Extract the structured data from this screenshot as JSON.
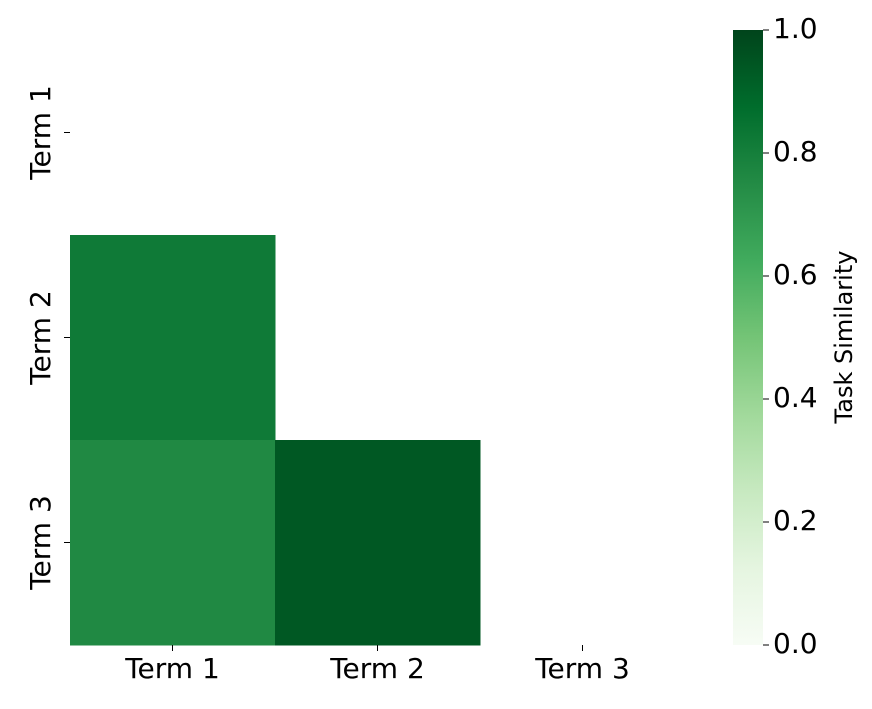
{
  "chart_data": {
    "type": "heatmap",
    "x_categories": [
      "Term 1",
      "Term 2",
      "Term 3"
    ],
    "y_categories": [
      "Term 1",
      "Term 2",
      "Term 3"
    ],
    "values": [
      [
        null,
        null,
        null
      ],
      [
        0.82,
        null,
        null
      ],
      [
        0.76,
        0.94,
        null
      ]
    ],
    "colormap": "Greens",
    "colorbar_label": "Task Similarity",
    "clim": [
      0,
      1
    ],
    "cticks": [
      {
        "value": 0,
        "label": "0.0"
      },
      0.2,
      0.4,
      0.6,
      0.8,
      {
        "value": 1,
        "label": "1.0"
      }
    ]
  }
}
